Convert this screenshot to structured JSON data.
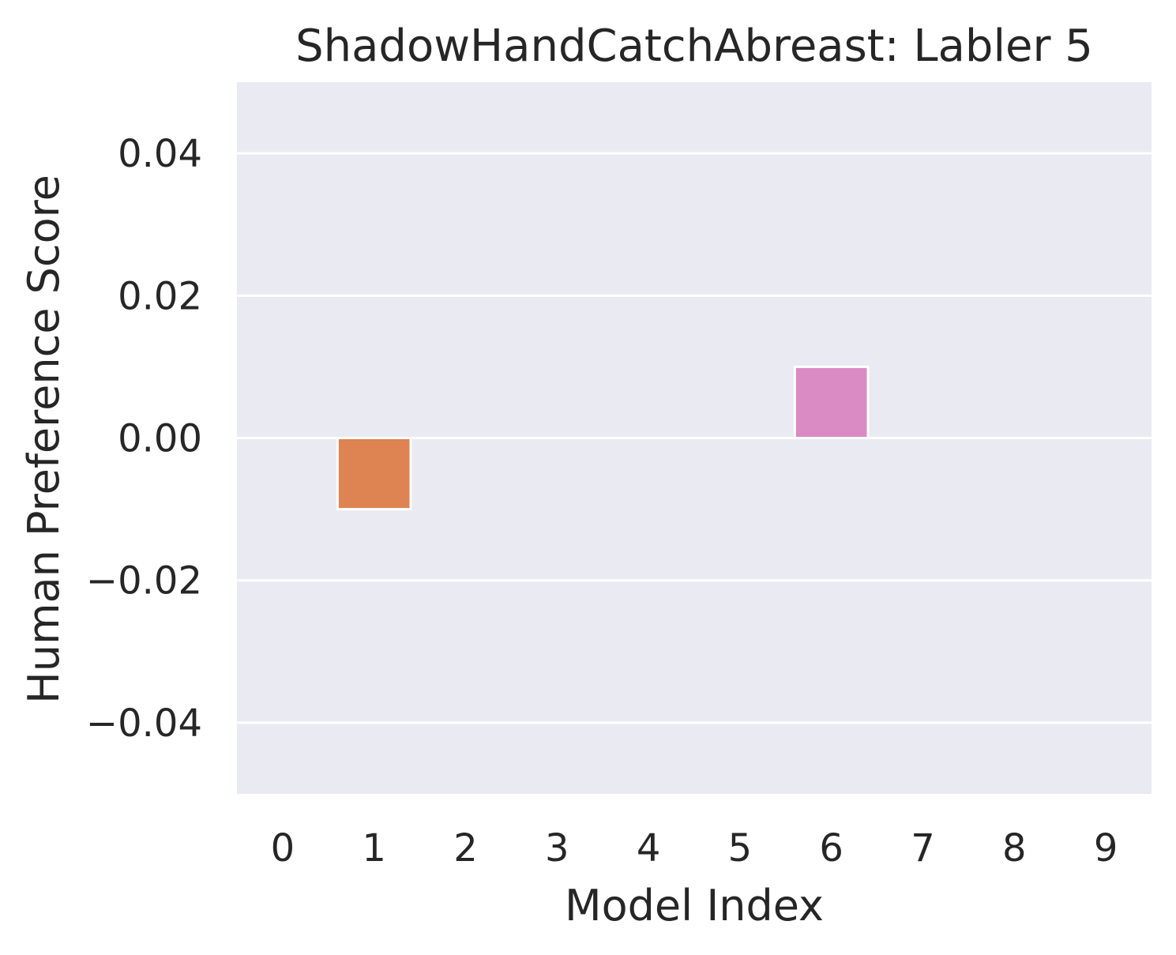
{
  "chart_data": {
    "type": "bar",
    "title": "ShadowHandCatchAbreast: Labler 5",
    "xlabel": "Model Index",
    "ylabel": "Human Preference Score",
    "categories": [
      "0",
      "1",
      "2",
      "3",
      "4",
      "5",
      "6",
      "7",
      "8",
      "9"
    ],
    "values": [
      0,
      -0.01,
      0,
      0,
      0,
      0,
      0.01,
      0,
      0,
      0
    ],
    "bar_colors": [
      "#4c72b0",
      "#dd8452",
      "#55a868",
      "#c44e52",
      "#8172b3",
      "#937860",
      "#da8bc3",
      "#8c8c8c",
      "#ccb974",
      "#64b5cd"
    ],
    "ylim": [
      -0.05,
      0.05
    ],
    "yticks": [
      -0.04,
      -0.02,
      0.0,
      0.02,
      0.04
    ],
    "ytick_labels": [
      "−0.04",
      "−0.02",
      "0.00",
      "0.02",
      "0.04"
    ],
    "grid": true,
    "background_color": "#eaeaf2",
    "grid_color": "#ffffff"
  }
}
